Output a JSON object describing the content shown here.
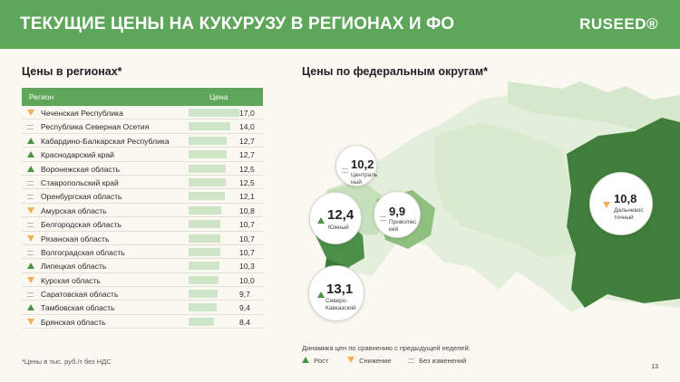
{
  "header": {
    "title": "ТЕКУЩИЕ ЦЕНЫ НА КУКУРУЗУ В РЕГИОНАХ И ФО",
    "logo": "RUSEED®"
  },
  "left": {
    "title": "Цены в регионах*",
    "col_region": "Регион",
    "col_price": "Цена",
    "rows": [
      {
        "trend": "down",
        "name": "Чеченская Республика",
        "value": "17,0",
        "num": 17.0
      },
      {
        "trend": "same",
        "name": "Республика Северная Осетия",
        "value": "14,0",
        "num": 14.0
      },
      {
        "trend": "up",
        "name": "Кабардино-Балкарская Республика",
        "value": "12,7",
        "num": 12.7
      },
      {
        "trend": "up",
        "name": "Краснодарский край",
        "value": "12,7",
        "num": 12.7
      },
      {
        "trend": "up",
        "name": "Воронежская область",
        "value": "12,5",
        "num": 12.5
      },
      {
        "trend": "same",
        "name": "Ставропольский край",
        "value": "12,5",
        "num": 12.5
      },
      {
        "trend": "same",
        "name": "Оренбургская область",
        "value": "12,1",
        "num": 12.1
      },
      {
        "trend": "down",
        "name": "Амурская область",
        "value": "10,8",
        "num": 10.8
      },
      {
        "trend": "same",
        "name": "Белгородская область",
        "value": "10,7",
        "num": 10.7
      },
      {
        "trend": "down",
        "name": "Рязанская область",
        "value": "10,7",
        "num": 10.7
      },
      {
        "trend": "same",
        "name": "Волгоградская область",
        "value": "10,7",
        "num": 10.7
      },
      {
        "trend": "up",
        "name": "Липецкая область",
        "value": "10,3",
        "num": 10.3
      },
      {
        "trend": "down",
        "name": "Курская область",
        "value": "10,0",
        "num": 10.0
      },
      {
        "trend": "same",
        "name": "Саратовская область",
        "value": "9,7",
        "num": 9.7
      },
      {
        "trend": "up",
        "name": "Тамбовская область",
        "value": "9,4",
        "num": 9.4
      },
      {
        "trend": "down",
        "name": "Брянская область",
        "value": "8,4",
        "num": 8.4
      }
    ],
    "footnote": "*Цены в тыс. руб./т без НДС"
  },
  "right": {
    "title": "Цены по федеральным округам*",
    "districts": [
      {
        "id": "central",
        "trend": "same",
        "value": "10,2",
        "label": "Централь\nный"
      },
      {
        "id": "south",
        "trend": "up",
        "value": "12,4",
        "label": "Южный"
      },
      {
        "id": "volga",
        "trend": "same",
        "value": "9,9",
        "label": "Приволжс\nкий"
      },
      {
        "id": "ncaucasus",
        "trend": "up",
        "value": "13,1",
        "label": "Северо-\nКавказский"
      },
      {
        "id": "fareast",
        "trend": "down",
        "value": "10,8",
        "label": "Дальневос\nточный"
      }
    ],
    "legend_title": "Динамика цен по сравнению с предыдущей неделей:",
    "legend": {
      "up": "Рост",
      "down": "Снижение",
      "same": "Без изменений"
    }
  },
  "colors": {
    "accent": "#5da65a",
    "dark_green": "#3f7f3b",
    "up": "#4a9446",
    "down": "#f0b15a",
    "same": "#b9b9b9"
  },
  "page_number": "13"
}
